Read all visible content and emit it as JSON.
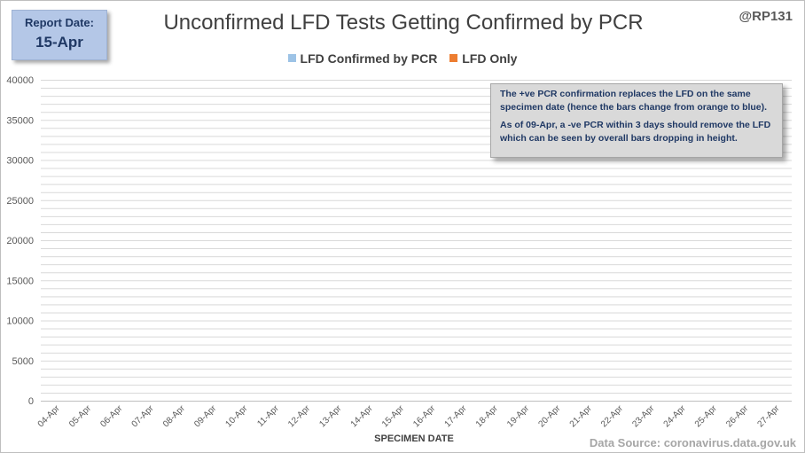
{
  "report": {
    "label": "Report Date:",
    "date": "15-Apr"
  },
  "handle": "@RP131",
  "source": "Data Source: coronavirus.data.gov.uk",
  "note": {
    "line1": "The +ve PCR confirmation replaces the LFD on the same specimen date (hence the bars change from orange to blue).",
    "line2": "As of 09-Apr, a -ve PCR within 3 days should remove the LFD which can be seen by overall bars dropping  in height."
  },
  "colors": {
    "confirmed": "#9dc3e6",
    "lfd_only": "#ed7d31",
    "grid": "#d9d9d9"
  },
  "chart_data": {
    "type": "bar",
    "stacked": true,
    "title": "Unconfirmed LFD Tests Getting Confirmed by PCR",
    "xlabel": "SPECIMEN DATE",
    "ylabel": "",
    "ylim": [
      0,
      40000
    ],
    "yticks": [
      0,
      5000,
      10000,
      15000,
      20000,
      25000,
      30000,
      35000,
      40000
    ],
    "minor_grid_step": 1000,
    "legend_position": "top",
    "categories": [
      "04-Apr",
      "05-Apr",
      "06-Apr",
      "07-Apr",
      "08-Apr",
      "09-Apr",
      "10-Apr",
      "11-Apr",
      "12-Apr",
      "13-Apr",
      "14-Apr",
      "15-Apr",
      "16-Apr",
      "17-Apr",
      "18-Apr",
      "19-Apr",
      "20-Apr",
      "21-Apr",
      "22-Apr",
      "23-Apr",
      "24-Apr",
      "25-Apr",
      "26-Apr",
      "27-Apr"
    ],
    "series": [
      {
        "name": "LFD Confirmed by PCR",
        "color": "#9dc3e6",
        "values": [
          0,
          0,
          0,
          0,
          0,
          0,
          0,
          0,
          0,
          0,
          0,
          0,
          0,
          0,
          0,
          0,
          0,
          0,
          0,
          0,
          0,
          0,
          0,
          0
        ]
      },
      {
        "name": "LFD Only",
        "color": "#ed7d31",
        "values": [
          0,
          0,
          0,
          0,
          0,
          0,
          0,
          0,
          0,
          0,
          0,
          0,
          0,
          0,
          0,
          0,
          0,
          0,
          0,
          0,
          0,
          0,
          0,
          0
        ]
      }
    ]
  }
}
